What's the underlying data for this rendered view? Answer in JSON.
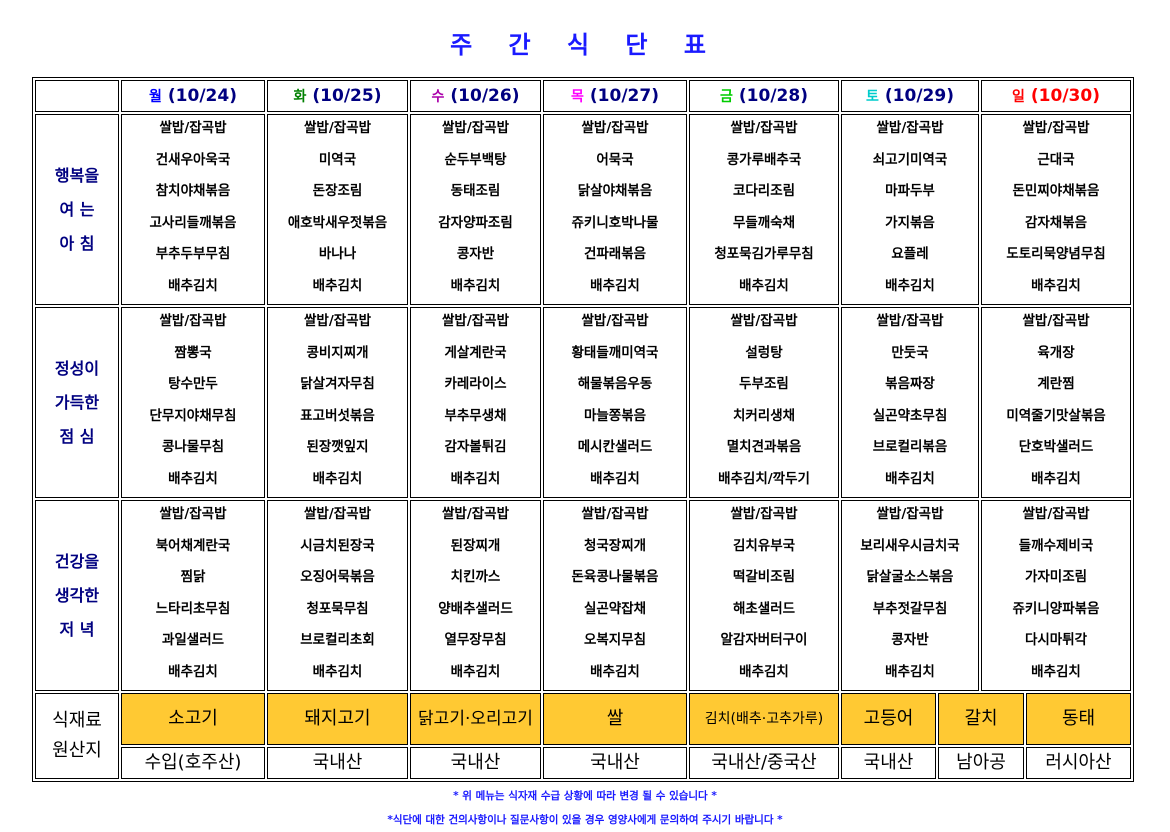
{
  "title": "주 간 식 단 표",
  "days": [
    {
      "day": "월",
      "date": "(10/24)",
      "color": "#0000ff"
    },
    {
      "day": "화",
      "date": "(10/25)",
      "color": "#008000"
    },
    {
      "day": "수",
      "date": "(10/26)",
      "color": "#aa00aa"
    },
    {
      "day": "목",
      "date": "(10/27)",
      "color": "#ff00ff"
    },
    {
      "day": "금",
      "date": "(10/28)",
      "color": "#00cc00"
    },
    {
      "day": "토",
      "date": "(10/29)",
      "color": "#00cccc"
    },
    {
      "day": "일",
      "date": "(10/30)",
      "color": "#ff0000"
    }
  ],
  "meals": [
    {
      "label": [
        "행복을",
        "여 는",
        "아 침"
      ],
      "menus": [
        [
          "쌀밥/잡곡밥",
          "건새우아욱국",
          "참치야채볶음",
          "고사리들깨볶음",
          "부추두부무침",
          "배추김치"
        ],
        [
          "쌀밥/잡곡밥",
          "미역국",
          "돈장조림",
          "애호박새우젓볶음",
          "바나나",
          "배추김치"
        ],
        [
          "쌀밥/잡곡밥",
          "순두부백탕",
          "동태조림",
          "감자양파조림",
          "콩자반",
          "배추김치"
        ],
        [
          "쌀밥/잡곡밥",
          "어묵국",
          "닭살야채볶음",
          "쥬키니호박나물",
          "건파래볶음",
          "배추김치"
        ],
        [
          "쌀밥/잡곡밥",
          "콩가루배추국",
          "코다리조림",
          "무들깨숙채",
          "청포묵김가루무침",
          "배추김치"
        ],
        [
          "쌀밥/잡곡밥",
          "쇠고기미역국",
          "마파두부",
          "가지볶음",
          "요플레",
          "배추김치"
        ],
        [
          "쌀밥/잡곡밥",
          "근대국",
          "돈민찌야채볶음",
          "감자채볶음",
          "도토리묵양념무침",
          "배추김치"
        ]
      ]
    },
    {
      "label": [
        "정성이",
        "가득한",
        "점 심"
      ],
      "menus": [
        [
          "쌀밥/잡곡밥",
          "짬뽕국",
          "탕수만두",
          "단무지야채무침",
          "콩나물무침",
          "배추김치"
        ],
        [
          "쌀밥/잡곡밥",
          "콩비지찌개",
          "닭살겨자무침",
          "표고버섯볶음",
          "된장깻잎지",
          "배추김치"
        ],
        [
          "쌀밥/잡곡밥",
          "게살계란국",
          "카레라이스",
          "부추무생채",
          "감자볼튀김",
          "배추김치"
        ],
        [
          "쌀밥/잡곡밥",
          "황태들깨미역국",
          "해물볶음우동",
          "마늘쫑볶음",
          "메시칸샐러드",
          "배추김치"
        ],
        [
          "쌀밥/잡곡밥",
          "설렁탕",
          "두부조림",
          "치커리생채",
          "멸치견과볶음",
          "배추김치/깍두기"
        ],
        [
          "쌀밥/잡곡밥",
          "만둣국",
          "볶음짜장",
          "실곤약초무침",
          "브로컬리볶음",
          "배추김치"
        ],
        [
          "쌀밥/잡곡밥",
          "육개장",
          "계란찜",
          "미역줄기맛살볶음",
          "단호박샐러드",
          "배추김치"
        ]
      ]
    },
    {
      "label": [
        "건강을",
        "생각한",
        "저 녁"
      ],
      "menus": [
        [
          "쌀밥/잡곡밥",
          "북어채계란국",
          "찜닭",
          "느타리초무침",
          "과일샐러드",
          "배추김치"
        ],
        [
          "쌀밥/잡곡밥",
          "시금치된장국",
          "오징어묵볶음",
          "청포묵무침",
          "브로컬리초회",
          "배추김치"
        ],
        [
          "쌀밥/잡곡밥",
          "된장찌개",
          "치킨까스",
          "양배추샐러드",
          "열무장무침",
          "배추김치"
        ],
        [
          "쌀밥/잡곡밥",
          "청국장찌개",
          "돈육콩나물볶음",
          "실곤약잡채",
          "오복지무침",
          "배추김치"
        ],
        [
          "쌀밥/잡곡밥",
          "김치유부국",
          "떡갈비조림",
          "해초샐러드",
          "알감자버터구이",
          "배추김치"
        ],
        [
          "쌀밥/잡곡밥",
          "보리새우시금치국",
          "닭살굴소스볶음",
          "부추젓갈무침",
          "콩자반",
          "배추김치"
        ],
        [
          "쌀밥/잡곡밥",
          "들깨수제비국",
          "가자미조림",
          "쥬키니양파볶음",
          "다시마튀각",
          "배추김치"
        ]
      ]
    }
  ],
  "origin": {
    "label": [
      "식재료",
      "원산지"
    ],
    "ingredients": [
      "소고기",
      "돼지고기",
      "닭고기·오리고기",
      "쌀",
      "김치(배추·고추가루)",
      "고등어",
      "갈치",
      "동태"
    ],
    "origins": [
      "수입(호주산)",
      "국내산",
      "국내산",
      "국내산",
      "국내산/중국산",
      "국내산",
      "남아공",
      "러시아산"
    ],
    "highlight_color": "#FFC933"
  },
  "notes": [
    "* 위 메뉴는 식자재 수급 상황에 따라 변경 될 수 있습니다 *",
    "*식단에 대한 건의사항이나 질문사항이 있을 경우 영양사에게 문의하여 주시기 바랍니다 *"
  ]
}
